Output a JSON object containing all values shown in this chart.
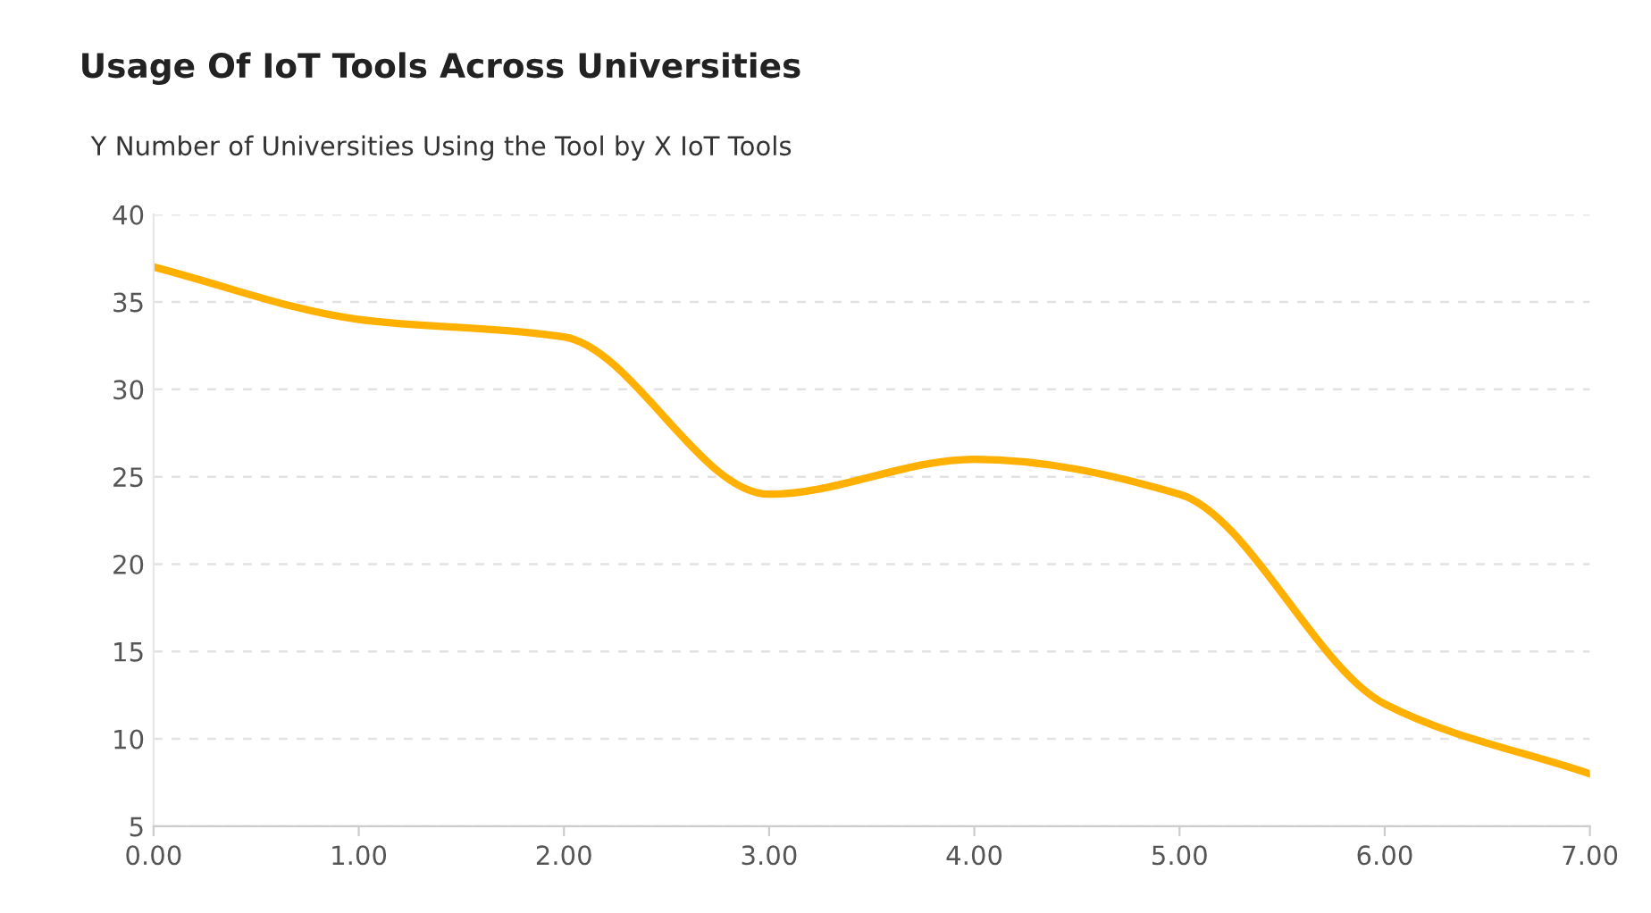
{
  "chart_data": {
    "type": "line",
    "title": "Usage Of IoT Tools Across Universities",
    "subtitle": "Y Number of Universities Using the Tool by X IoT Tools",
    "x": [
      0,
      1,
      2,
      3,
      4,
      5,
      6,
      7
    ],
    "series": [
      {
        "color": "#ffb000",
        "values": [
          37,
          34,
          33,
          24,
          26,
          24,
          12,
          8
        ]
      }
    ],
    "xlim": [
      0,
      7
    ],
    "xticks": [
      {
        "value": 0,
        "label": "0.00"
      },
      {
        "value": 1,
        "label": "1.00"
      },
      {
        "value": 2,
        "label": "2.00"
      },
      {
        "value": 3,
        "label": "3.00"
      },
      {
        "value": 4,
        "label": "4.00"
      },
      {
        "value": 5,
        "label": "5.00"
      },
      {
        "value": 6,
        "label": "6.00"
      },
      {
        "value": 7,
        "label": "7.00"
      }
    ],
    "ylim": [
      5,
      40
    ],
    "yticks": [
      5,
      10,
      15,
      20,
      25,
      30,
      35,
      40
    ],
    "grid": "y",
    "marker": "none",
    "line_style": "solid"
  }
}
